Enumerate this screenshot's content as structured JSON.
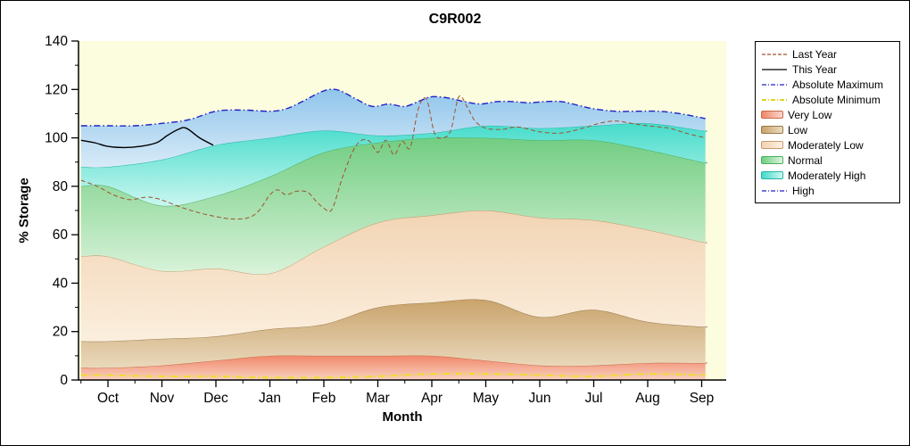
{
  "chart_data": {
    "type": "area",
    "title": "C9R002",
    "xlabel": "Month",
    "ylabel": "% Storage",
    "ylim": [
      0,
      140
    ],
    "yticks": [
      0,
      20,
      40,
      60,
      80,
      100,
      120,
      140
    ],
    "plot_bg": "#FCFCDF",
    "axis_color": "#000000",
    "categories": [
      "Oct",
      "Nov",
      "Dec",
      "Jan",
      "Feb",
      "Mar",
      "Apr",
      "May",
      "Jun",
      "Jul",
      "Aug",
      "Sep"
    ],
    "bands": [
      {
        "name": "Very Low",
        "color_top": "#F0876A",
        "color_bottom": "#FAD2C0",
        "stroke": "#C96A4A",
        "top": [
          5,
          6,
          8,
          10,
          10,
          10,
          10,
          8,
          6,
          6,
          7,
          7
        ]
      },
      {
        "name": "Low",
        "color_top": "#C9A36B",
        "color_bottom": "#EAD9BC",
        "stroke": "#97794C",
        "top": [
          16,
          17,
          18,
          21,
          23,
          30,
          32,
          33,
          26,
          29,
          24,
          22
        ]
      },
      {
        "name": "Moderately Low",
        "color_top": "#F2D4B4",
        "color_bottom": "#FBEFDE",
        "stroke": "#C99A6E",
        "top": [
          51,
          45,
          46,
          44,
          55,
          65,
          68,
          70,
          67,
          66,
          62,
          57
        ]
      },
      {
        "name": "Normal",
        "color_top": "#72CD82",
        "color_bottom": "#D9F3DA",
        "stroke": "#4CAF5E",
        "top": [
          80,
          72,
          76,
          84,
          94,
          98,
          100,
          100,
          99,
          99,
          95,
          90
        ]
      },
      {
        "name": "Moderately High",
        "color_top": "#45DCCB",
        "color_bottom": "#C9F6F0",
        "stroke": "#27B5A5",
        "top": [
          88,
          91,
          97,
          100,
          103,
          101,
          102,
          105,
          104,
          105,
          106,
          103
        ]
      },
      {
        "name": "High",
        "color_top": "#90C5EB",
        "color_bottom": "#D8EBF8",
        "top_from_line": "Absolute Maximum"
      }
    ],
    "lines": [
      {
        "name": "Absolute Maximum",
        "color": "#2020C8",
        "style": "dashdot",
        "width": 1.4,
        "x": [
          -0.5,
          0,
          0.5,
          1,
          1.5,
          2,
          2.5,
          3,
          3.3,
          3.6,
          3.9,
          4.1,
          4.3,
          4.6,
          4.9,
          5.2,
          5.5,
          5.8,
          6.0,
          6.3,
          6.6,
          6.9,
          7.2,
          7.5,
          7.8,
          8.1,
          8.4,
          8.7,
          9.0,
          9.4,
          9.8,
          10.2,
          10.6,
          11.07
        ],
        "y": [
          105,
          105,
          105,
          106,
          107.5,
          111,
          111.5,
          111,
          112,
          115,
          118.5,
          120,
          119.5,
          116,
          113,
          114,
          113,
          115.5,
          117,
          116.5,
          115,
          114,
          115,
          115,
          114.5,
          115,
          115,
          113.5,
          112,
          111,
          111,
          111,
          110,
          108
        ]
      },
      {
        "name": "Absolute Minimum",
        "color": "#EDDF26",
        "style": "dashdot",
        "width": 2,
        "x": [
          -0.5,
          0,
          1,
          2,
          3,
          4,
          5,
          6,
          7,
          8,
          9,
          10,
          11.07
        ],
        "y": [
          2,
          2,
          1.5,
          1.5,
          1,
          1,
          1.5,
          2.5,
          2.5,
          2,
          1.5,
          2.5,
          2
        ]
      },
      {
        "name": "Last Year",
        "color": "#A0522D",
        "style": "dashed",
        "width": 1,
        "x": [
          -0.5,
          -0.2,
          0.1,
          0.4,
          0.7,
          0.9,
          1.1,
          1.4,
          1.7,
          2.0,
          2.3,
          2.6,
          2.8,
          3.0,
          3.15,
          3.3,
          3.5,
          3.7,
          3.85,
          4.0,
          4.15,
          4.35,
          4.55,
          4.7,
          4.85,
          5.0,
          5.15,
          5.3,
          5.45,
          5.6,
          5.75,
          5.9,
          6.05,
          6.2,
          6.35,
          6.5,
          6.65,
          6.8,
          7.0,
          7.3,
          7.6,
          8.0,
          8.4,
          8.8,
          9.1,
          9.4,
          9.7,
          10.0,
          10.4,
          10.7,
          11.07
        ],
        "y": [
          82.5,
          80,
          76.5,
          74.5,
          75.5,
          75,
          73.5,
          71,
          69,
          67.5,
          66.5,
          67,
          70,
          76.5,
          78.5,
          76.5,
          78,
          77.5,
          74,
          71,
          70.5,
          84,
          95,
          99,
          98.5,
          94,
          99,
          93,
          98.5,
          96,
          112,
          116,
          102,
          100,
          103,
          117,
          113,
          107,
          104,
          103.5,
          104.5,
          102.5,
          102,
          104,
          106,
          107,
          106,
          105,
          104,
          102,
          100
        ]
      },
      {
        "name": "This Year",
        "color": "#000000",
        "style": "solid",
        "width": 1.4,
        "x": [
          -0.5,
          -0.25,
          0,
          0.3,
          0.6,
          0.9,
          1.1,
          1.3,
          1.45,
          1.7,
          1.95
        ],
        "y": [
          99,
          98,
          96.5,
          96,
          96.5,
          98,
          101,
          103.5,
          104,
          100,
          97
        ]
      }
    ],
    "legend": [
      {
        "label": "Last Year",
        "swatch": "line",
        "color": "#A0522D",
        "style": "dashed"
      },
      {
        "label": "This Year",
        "swatch": "line",
        "color": "#000000",
        "style": "solid"
      },
      {
        "label": "Absolute Maximum",
        "swatch": "line",
        "color": "#2020C8",
        "style": "dashdot"
      },
      {
        "label": "Absolute Minimum",
        "swatch": "line",
        "color": "#E3D51E",
        "style": "dashdot"
      },
      {
        "label": "Very Low",
        "swatch": "fill",
        "fill_from": "#F0876A",
        "fill_to": "#FBD8CB",
        "border": "#C96A4A"
      },
      {
        "label": "Low",
        "swatch": "fill",
        "fill_from": "#C8A26A",
        "fill_to": "#EDDCC0",
        "border": "#97794C"
      },
      {
        "label": "Moderately Low",
        "swatch": "fill",
        "fill_from": "#F2D2B0",
        "fill_to": "#FCF0E2",
        "border": "#C99A6E"
      },
      {
        "label": "Normal",
        "swatch": "fill",
        "fill_from": "#6FCD80",
        "fill_to": "#DCF4DD",
        "border": "#4CAF5E"
      },
      {
        "label": "Moderately High",
        "swatch": "fill",
        "fill_from": "#40DBCA",
        "fill_to": "#D0F7F2",
        "border": "#27B5A5"
      },
      {
        "label": "High",
        "swatch": "line",
        "color": "#2020C8",
        "style": "dashdot"
      }
    ]
  }
}
